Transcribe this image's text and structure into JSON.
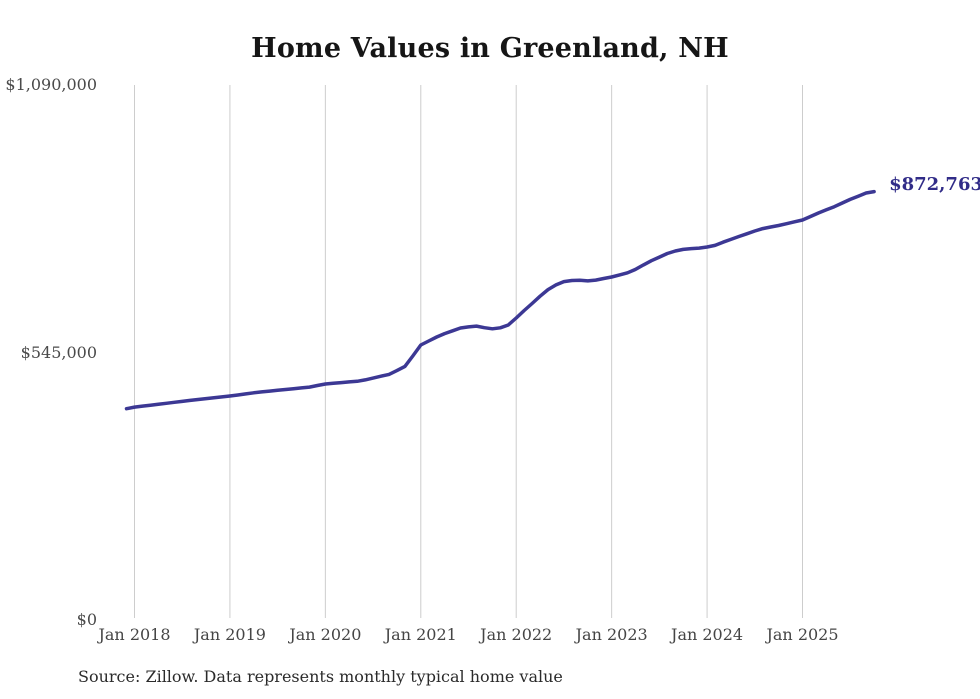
{
  "page": {
    "title": "Home Values in Greenland, NH",
    "source_note": "Source: Zillow. Data represents monthly typical home value"
  },
  "colors": {
    "background": "#ffffff",
    "line": "#3c3894",
    "end_label": "#312c88",
    "grid": "#cdcdcd",
    "title_text": "#161616",
    "tick_text": "#4a4a4a",
    "source_text": "#2b2b2b"
  },
  "chart_data": {
    "type": "line",
    "title": "Home Values in Greenland, NH",
    "xlabel": "",
    "ylabel": "",
    "ylim": [
      0,
      1090000
    ],
    "grid": "vertical-only",
    "legend": "none",
    "last_point_label": "$872,763",
    "last_point_value": 872763,
    "last_point_date": "2025-10",
    "y_ticks": [
      {
        "label": "$0",
        "value": 0
      },
      {
        "label": "$545,000",
        "value": 545000
      },
      {
        "label": "$1,090,000",
        "value": 1090000
      }
    ],
    "x_ticks": [
      {
        "label": "Jan 2018",
        "date": "2018-01"
      },
      {
        "label": "Jan 2019",
        "date": "2019-01"
      },
      {
        "label": "Jan 2020",
        "date": "2020-01"
      },
      {
        "label": "Jan 2021",
        "date": "2021-01"
      },
      {
        "label": "Jan 2022",
        "date": "2022-01"
      },
      {
        "label": "Jan 2023",
        "date": "2023-01"
      },
      {
        "label": "Jan 2024",
        "date": "2024-01"
      },
      {
        "label": "Jan 2025",
        "date": "2025-01"
      }
    ],
    "series": [
      {
        "name": "Monthly typical home value",
        "x": [
          "2017-12",
          "2018-01",
          "2018-02",
          "2018-03",
          "2018-04",
          "2018-05",
          "2018-06",
          "2018-07",
          "2018-08",
          "2018-09",
          "2018-10",
          "2018-11",
          "2018-12",
          "2019-01",
          "2019-02",
          "2019-03",
          "2019-04",
          "2019-05",
          "2019-06",
          "2019-07",
          "2019-08",
          "2019-09",
          "2019-10",
          "2019-11",
          "2019-12",
          "2020-01",
          "2020-02",
          "2020-03",
          "2020-04",
          "2020-05",
          "2020-06",
          "2020-07",
          "2020-08",
          "2020-09",
          "2020-10",
          "2020-11",
          "2020-12",
          "2021-01",
          "2021-02",
          "2021-03",
          "2021-04",
          "2021-05",
          "2021-06",
          "2021-07",
          "2021-08",
          "2021-09",
          "2021-10",
          "2021-11",
          "2021-12",
          "2022-01",
          "2022-02",
          "2022-03",
          "2022-04",
          "2022-05",
          "2022-06",
          "2022-07",
          "2022-08",
          "2022-09",
          "2022-10",
          "2022-11",
          "2022-12",
          "2023-01",
          "2023-02",
          "2023-03",
          "2023-04",
          "2023-05",
          "2023-06",
          "2023-07",
          "2023-08",
          "2023-09",
          "2023-10",
          "2023-11",
          "2023-12",
          "2024-01",
          "2024-02",
          "2024-03",
          "2024-04",
          "2024-05",
          "2024-06",
          "2024-07",
          "2024-08",
          "2024-09",
          "2024-10",
          "2024-11",
          "2024-12",
          "2025-01",
          "2025-02",
          "2025-03",
          "2025-04",
          "2025-05",
          "2025-06",
          "2025-07",
          "2025-08",
          "2025-09",
          "2025-10"
        ],
        "values": [
          430500,
          433800,
          435800,
          437700,
          439500,
          441500,
          443500,
          445400,
          447400,
          449300,
          451000,
          452800,
          454600,
          456400,
          458500,
          460700,
          462800,
          464800,
          466400,
          468000,
          469600,
          471300,
          472900,
          474600,
          477700,
          480800,
          482200,
          483600,
          485000,
          486400,
          489200,
          492900,
          496700,
          500400,
          508100,
          516600,
          537800,
          560300,
          568500,
          576600,
          583500,
          589200,
          594900,
          597100,
          598700,
          595500,
          593300,
          595400,
          601100,
          615300,
          630500,
          644900,
          659800,
          673200,
          682800,
          689500,
          691600,
          692200,
          690900,
          692600,
          695700,
          698800,
          703100,
          707300,
          714400,
          723400,
          732100,
          739400,
          746800,
          751700,
          755000,
          756600,
          757700,
          759900,
          763300,
          769800,
          775500,
          781300,
          786900,
          792600,
          797500,
          800700,
          803800,
          807400,
          811200,
          815000,
          822100,
          829200,
          835700,
          842100,
          849500,
          857000,
          863500,
          869900,
          872763
        ]
      }
    ]
  }
}
